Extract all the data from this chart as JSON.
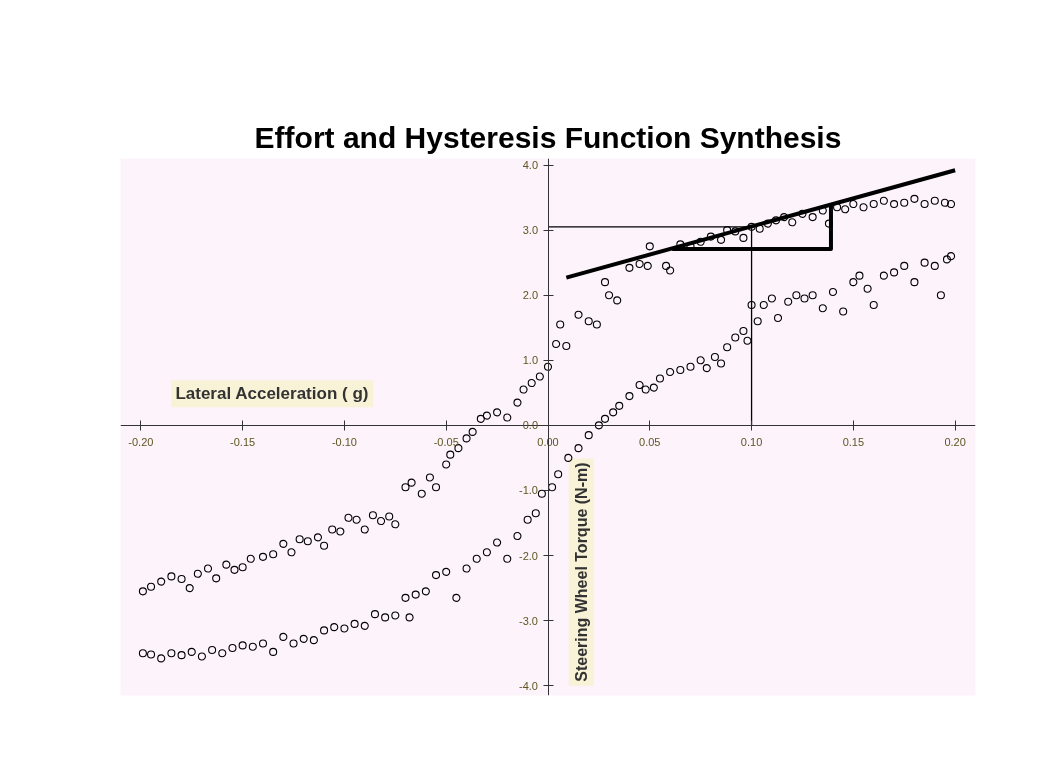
{
  "chart_data": {
    "type": "scatter",
    "title": "Effort and Hysteresis Function Synthesis",
    "xlabel": "Lateral Acceleration ( g)",
    "ylabel": "Steering Wheel Torque (N-m)",
    "xlim": [
      -0.21,
      0.21
    ],
    "ylim": [
      -4.15,
      4.1
    ],
    "xticks": [
      {
        "value": -0.2,
        "label": "-0.20"
      },
      {
        "value": -0.15,
        "label": "-0.15"
      },
      {
        "value": -0.1,
        "label": "-0.10"
      },
      {
        "value": -0.05,
        "label": "-0.05"
      },
      {
        "value": 0,
        "label": "0.00"
      },
      {
        "value": 0.05,
        "label": "0.05"
      },
      {
        "value": 0.1,
        "label": "0.10"
      },
      {
        "value": 0.15,
        "label": "0.15"
      },
      {
        "value": 0.2,
        "label": "0.20"
      }
    ],
    "yticks": [
      {
        "value": -4,
        "label": "-4.0"
      },
      {
        "value": -3,
        "label": "-3.0"
      },
      {
        "value": -2,
        "label": "-2.0"
      },
      {
        "value": -1,
        "label": "-1.0"
      },
      {
        "value": 0,
        "label": "0.0"
      },
      {
        "value": 1,
        "label": "1.0"
      },
      {
        "value": 2,
        "label": "2.0"
      },
      {
        "value": 3,
        "label": "3.0"
      },
      {
        "value": 4,
        "label": "4.0"
      }
    ],
    "grid": false,
    "series": [
      {
        "marker": "circle",
        "color": "#000000",
        "x": [
          -0.199,
          -0.195,
          -0.19,
          -0.185,
          -0.18,
          -0.176,
          -0.172,
          -0.167,
          -0.163,
          -0.158,
          -0.154,
          -0.15,
          -0.146,
          -0.14,
          -0.135,
          -0.13,
          -0.126,
          -0.122,
          -0.118,
          -0.113,
          -0.11,
          -0.106,
          -0.102,
          -0.098,
          -0.094,
          -0.09,
          -0.086,
          -0.082,
          -0.078,
          -0.075,
          -0.07,
          -0.067,
          -0.062,
          -0.058,
          -0.055,
          -0.05,
          -0.048,
          -0.044,
          -0.04,
          -0.037,
          -0.033,
          -0.03,
          -0.025,
          -0.02,
          -0.015,
          -0.012,
          -0.008,
          -0.004,
          0.0,
          0.004,
          0.006,
          0.009,
          0.015,
          0.02,
          0.024,
          0.03,
          0.034,
          0.028,
          0.04,
          0.045,
          0.049,
          0.05,
          0.058,
          0.06,
          0.065,
          0.07,
          0.075,
          0.08,
          0.085,
          0.088,
          0.092,
          0.096,
          0.1,
          0.104,
          0.108,
          0.112,
          0.116,
          0.12,
          0.125,
          0.13,
          0.135,
          0.138,
          0.142,
          0.146,
          0.15,
          0.155,
          0.16,
          0.165,
          0.17,
          0.175,
          0.18,
          0.185,
          0.19,
          0.195,
          0.198
        ],
        "values": [
          -2.55,
          -2.48,
          -2.4,
          -2.32,
          -2.36,
          -2.5,
          -2.28,
          -2.2,
          -2.35,
          -2.14,
          -2.22,
          -2.18,
          -2.05,
          -2.02,
          -1.98,
          -1.82,
          -1.95,
          -1.75,
          -1.78,
          -1.72,
          -1.85,
          -1.6,
          -1.63,
          -1.42,
          -1.45,
          -1.6,
          -1.38,
          -1.47,
          -1.4,
          -1.52,
          -0.95,
          -0.88,
          -1.05,
          -0.8,
          -0.95,
          -0.6,
          -0.45,
          -0.35,
          -0.2,
          -0.1,
          0.1,
          0.15,
          0.2,
          0.12,
          0.35,
          0.55,
          0.65,
          0.75,
          0.9,
          1.25,
          1.55,
          1.22,
          1.7,
          1.6,
          1.55,
          2.0,
          1.92,
          2.2,
          2.42,
          2.48,
          2.45,
          2.75,
          2.45,
          2.38,
          2.78,
          2.75,
          2.82,
          2.9,
          2.85,
          3.0,
          2.98,
          2.88,
          3.05,
          3.02,
          3.1,
          3.15,
          3.2,
          3.12,
          3.25,
          3.2,
          3.3,
          3.1,
          3.35,
          3.32,
          3.4,
          3.35,
          3.4,
          3.45,
          3.4,
          3.42,
          3.48,
          3.4,
          3.45,
          3.42,
          3.4
        ]
      },
      {
        "marker": "circle",
        "color": "#000000",
        "x": [
          -0.199,
          -0.195,
          -0.19,
          -0.185,
          -0.18,
          -0.175,
          -0.17,
          -0.165,
          -0.16,
          -0.155,
          -0.15,
          -0.145,
          -0.14,
          -0.135,
          -0.13,
          -0.125,
          -0.12,
          -0.115,
          -0.11,
          -0.105,
          -0.1,
          -0.095,
          -0.09,
          -0.085,
          -0.08,
          -0.075,
          -0.07,
          -0.068,
          -0.065,
          -0.06,
          -0.055,
          -0.05,
          -0.045,
          -0.04,
          -0.035,
          -0.03,
          -0.025,
          -0.02,
          -0.015,
          -0.01,
          -0.006,
          -0.003,
          0.002,
          0.005,
          0.01,
          0.015,
          0.02,
          0.025,
          0.028,
          0.032,
          0.035,
          0.04,
          0.045,
          0.048,
          0.052,
          0.055,
          0.06,
          0.065,
          0.07,
          0.075,
          0.078,
          0.082,
          0.085,
          0.088,
          0.092,
          0.096,
          0.098,
          0.1,
          0.103,
          0.106,
          0.11,
          0.113,
          0.118,
          0.122,
          0.126,
          0.13,
          0.135,
          0.14,
          0.145,
          0.15,
          0.153,
          0.157,
          0.16,
          0.165,
          0.17,
          0.175,
          0.18,
          0.185,
          0.19,
          0.193,
          0.196,
          0.198
        ],
        "values": [
          -3.5,
          -3.52,
          -3.58,
          -3.5,
          -3.53,
          -3.48,
          -3.55,
          -3.45,
          -3.5,
          -3.42,
          -3.38,
          -3.4,
          -3.35,
          -3.48,
          -3.25,
          -3.35,
          -3.28,
          -3.3,
          -3.15,
          -3.1,
          -3.12,
          -3.05,
          -3.08,
          -2.9,
          -2.95,
          -2.92,
          -2.65,
          -2.95,
          -2.6,
          -2.55,
          -2.3,
          -2.25,
          -2.65,
          -2.2,
          -2.05,
          -1.95,
          -1.8,
          -2.05,
          -1.7,
          -1.45,
          -1.35,
          -1.05,
          -0.95,
          -0.75,
          -0.5,
          -0.35,
          -0.15,
          0.0,
          0.1,
          0.2,
          0.3,
          0.45,
          0.62,
          0.55,
          0.58,
          0.72,
          0.82,
          0.85,
          0.9,
          1.0,
          0.88,
          1.05,
          0.95,
          1.2,
          1.35,
          1.45,
          1.3,
          1.85,
          1.6,
          1.85,
          1.95,
          1.65,
          1.9,
          2.0,
          1.95,
          2.0,
          1.8,
          2.05,
          1.75,
          2.2,
          2.3,
          2.1,
          1.85,
          2.3,
          2.35,
          2.45,
          2.2,
          2.5,
          2.45,
          2.0,
          2.55,
          2.6
        ]
      },
      {
        "type": "line",
        "marker": "none",
        "line_style": "solid",
        "color": "#000000",
        "x": [
          0.009,
          0.2
        ],
        "values": [
          2.27,
          3.92
        ]
      },
      {
        "type": "line",
        "marker": "none",
        "line_style": "solid",
        "color": "#000000",
        "x": [
          0.061,
          0.139,
          0.139
        ],
        "values": [
          2.71,
          2.71,
          3.39
        ]
      },
      {
        "type": "line",
        "marker": "none",
        "line_style": "solid",
        "color": "#000000",
        "x": [
          0.0,
          0.1,
          0.1
        ],
        "values": [
          3.05,
          3.05,
          0.0
        ]
      }
    ]
  }
}
